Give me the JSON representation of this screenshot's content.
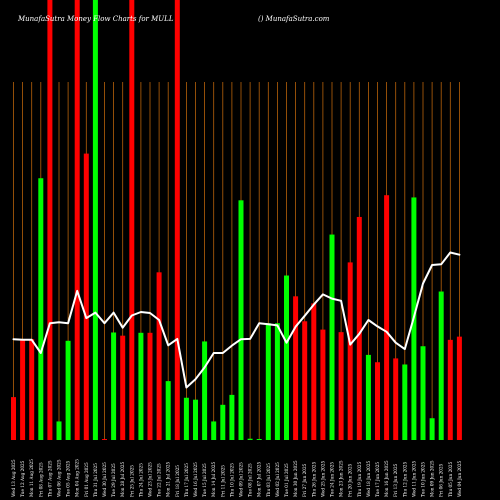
{
  "header": {
    "title": "MunafaSutra  Money Flow  Charts for MULL",
    "credit": "() MunafaSutra.com"
  },
  "colors": {
    "background": "#000000",
    "up": "#00ff00",
    "down": "#ff0000",
    "line": "#ffffff",
    "grid": "#b8620a",
    "text": "#ffffff"
  },
  "chart_data": {
    "type": "bar",
    "title": "MunafaSutra  Money Flow  Charts for MULL",
    "xlabel": "",
    "ylabel": "",
    "ylim": [
      0,
      100
    ],
    "grid": true,
    "categories": [
      "Wed 13 Aug 2025",
      "Tue 12 Aug 2025",
      "Mon 11 Aug 2025",
      "Fri 08 Aug 2025",
      "Thu 07 Aug 2025",
      "Wed 06 Aug 2025",
      "Tue 05 Aug 2025",
      "Mon 04 Aug 2025",
      "Fri 01 Aug 2025",
      "Thu 31 Jul 2025",
      "Wed 30 Jul 2025",
      "Tue 29 Jul 2025",
      "Mon 28 Jul 2025",
      "Fri 25 Jul 2025",
      "Thu 24 Jul 2025",
      "Wed 23 Jul 2025",
      "Tue 22 Jul 2025",
      "Mon 21 Jul 2025",
      "Fri 18 Jul 2025",
      "Thu 17 Jul 2025",
      "Wed 16 Jul 2025",
      "Tue 15 Jul 2025",
      "Mon 14 Jul 2025",
      "Fri 11 Jul 2025",
      "Thu 10 Jul 2025",
      "Wed 09 Jul 2025",
      "Tue 08 Jul 2025",
      "Mon 07 Jul 2025",
      "Thu 03 Jul 2025",
      "Wed 02 Jul 2025",
      "Tue 01 Jul 2025",
      "Mon 30 Jun 2025",
      "Fri 27 Jun 2025",
      "Thu 26 Jun 2025",
      "Wed 25 Jun 2025",
      "Tue 24 Jun 2025",
      "Mon 23 Jun 2025",
      "Fri 20 Jun 2025",
      "Thu 19 Jun 2025",
      "Wed 18 Jun 2025",
      "Tue 17 Jun 2025",
      "Mon 16 Jun 2025",
      "Fri 13 Jun 2025",
      "Thu 12 Jun 2025",
      "Wed 11 Jun 2025",
      "Tue 10 Jun 2025",
      "Mon 09 Jun 2025",
      "Fri 06 Jun 2025",
      "Thu 05 Jun 2025",
      "Wed 04 Jun 2025"
    ],
    "x_tick_labels": [
      "Wed 13 Aug 2025",
      "Tue 12 Aug 2025",
      "Mon 11 Aug 2025",
      "Fri 08 Aug 2025",
      "Thu 07 Aug 2025",
      "Wed 06 Aug 2025",
      "Tue 05 Aug 2025",
      "Mon 04 Aug 2025",
      "Fri 01 Aug 2025",
      "Thu 31 Jul 2025",
      "Wed 30 Jul 2025",
      "Tue 29 Jul 2025",
      "Mon 28 Jul 2025",
      "Fri 25 Jul 2025",
      "Thu 24 Jul 2025",
      "Wed 23 Jul 2025",
      "Tue 22 Jul 2025",
      "Mon 21 Jul 2025",
      "Fri 18 Jul 2025",
      "Thu 17 Jul 2025",
      "Wed 16 Jul 2025",
      "Tue 15 Jul 2025",
      "Mon 14 Jul 2025",
      "Fri 11 Jul 2025",
      "Thu 10 Jul 2025",
      "Wed 09 Jul 2025",
      "Tue 08 Jul 2025",
      "Mon 07 Jul 2025",
      "Thu 03 Jul 2025",
      "Wed 02 Jul 2025",
      "Tue 01 Jul 2025",
      "Mon 30 Jun 2025",
      "Fri 27 Jun 2025",
      "Thu 26 Jun 2025",
      "Wed 25 Jun 2025",
      "Tue 24 Jun 2025",
      "Mon 23 Jun 2025",
      "Fri 20 Jun 2025",
      "Thu 19 Jun 2025",
      "Wed 18 Jun 2025",
      "Tue 17 Jun 2025",
      "Mon 16 Jun 2025",
      "Fri 13 Jun 2025",
      "Thu 12 Jun 2025",
      "Wed 11 Jun 2025",
      "Tue 10 Jun 2025",
      "Mon 09 Jun 2025",
      "Fri 06 Jun 2025",
      "Thu 05 Jun 2025",
      "Wed 04 Jun 2025"
    ],
    "bar_colors": [
      "down",
      "down",
      "down",
      "up",
      "down",
      "up",
      "up",
      "down",
      "down",
      "up",
      "down",
      "up",
      "down",
      "down",
      "up",
      "down",
      "down",
      "up",
      "down",
      "up",
      "up",
      "up",
      "up",
      "up",
      "up",
      "up",
      "up",
      "up",
      "up",
      "up",
      "up",
      "down",
      "down",
      "down",
      "down",
      "up",
      "down",
      "down",
      "down",
      "up",
      "down",
      "down",
      "down",
      "up",
      "up",
      "up",
      "up",
      "up",
      "down",
      "down"
    ],
    "series": [
      {
        "values": [
          13.4,
          31.5,
          31.5,
          81.8,
          105,
          5.8,
          31,
          105,
          89.5,
          105,
          0.3,
          33.6,
          32.6,
          105,
          33.5,
          33.5,
          52.4,
          18.4,
          105,
          13.2,
          12.6,
          30.8,
          5.8,
          11,
          14.1,
          74.9,
          0.4,
          0.3,
          36.5,
          36.5,
          51.4,
          44.9,
          37.1,
          42.7,
          34.5,
          64.2,
          33.7,
          55.5,
          69.7,
          26.6,
          24.3,
          76.5,
          25.5,
          23.6,
          75.8,
          29.3,
          6.8,
          46.4,
          31.3,
          32.3
        ]
      },
      {
        "values": [
          31.5,
          31.3,
          31.3,
          27.2,
          36.5,
          36.8,
          36.5,
          46.6,
          38.1,
          39.8,
          36.5,
          39.8,
          35.1,
          38.9,
          40,
          39.7,
          37.5,
          29.6,
          31.6,
          16.4,
          19,
          22.7,
          27.2,
          27.2,
          29.5,
          31.5,
          31.6,
          36.5,
          36.2,
          35.8,
          30.4,
          35.4,
          38.8,
          42.3,
          45.5,
          44.2,
          43.5,
          29.8,
          33.2,
          37.5,
          35.5,
          33.8,
          30.4,
          28.4,
          38.4,
          48.9,
          54.7,
          54.9,
          58.6,
          57.9
        ]
      }
    ]
  }
}
